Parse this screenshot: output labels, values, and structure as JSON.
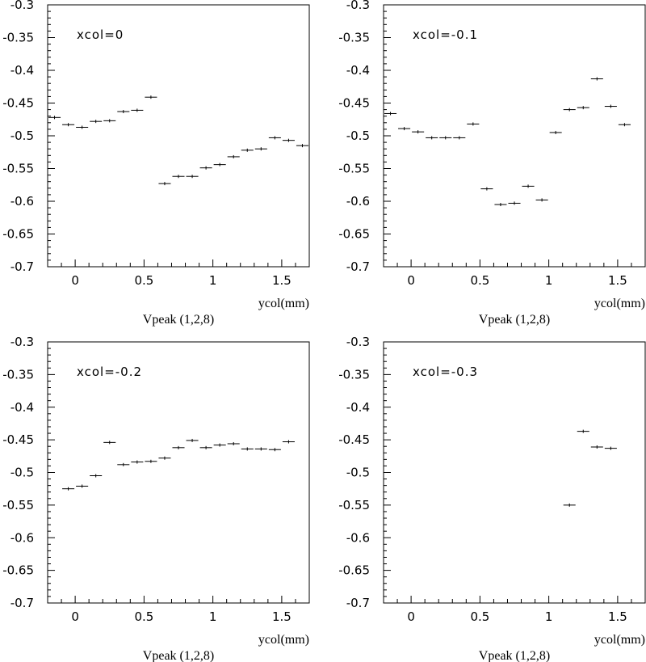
{
  "chart_data": [
    {
      "type": "scatter",
      "label": "xcol=0",
      "xlabel": "ycol(mm)",
      "title_below": "Vpeak (1,2,8)",
      "xlim": [
        -0.2,
        1.7
      ],
      "ylim": [
        -0.7,
        -0.3
      ],
      "grid": false,
      "x_bin_width": 0.1,
      "xticks": [
        "0",
        "0.5",
        "1",
        "1.5"
      ],
      "yticks": [
        "-0.3",
        "-0.35",
        "-0.4",
        "-0.45",
        "-0.5",
        "-0.55",
        "-0.6",
        "-0.65",
        "-0.7"
      ],
      "points": [
        {
          "x": -0.15,
          "y": -0.472
        },
        {
          "x": -0.05,
          "y": -0.483
        },
        {
          "x": 0.05,
          "y": -0.487
        },
        {
          "x": 0.15,
          "y": -0.478
        },
        {
          "x": 0.25,
          "y": -0.477
        },
        {
          "x": 0.35,
          "y": -0.463
        },
        {
          "x": 0.45,
          "y": -0.461
        },
        {
          "x": 0.55,
          "y": -0.441
        },
        {
          "x": 0.65,
          "y": -0.573
        },
        {
          "x": 0.75,
          "y": -0.562
        },
        {
          "x": 0.85,
          "y": -0.562
        },
        {
          "x": 0.95,
          "y": -0.549
        },
        {
          "x": 1.05,
          "y": -0.544
        },
        {
          "x": 1.15,
          "y": -0.532
        },
        {
          "x": 1.25,
          "y": -0.522
        },
        {
          "x": 1.35,
          "y": -0.52
        },
        {
          "x": 1.45,
          "y": -0.503
        },
        {
          "x": 1.55,
          "y": -0.507
        },
        {
          "x": 1.65,
          "y": -0.515
        }
      ]
    },
    {
      "type": "scatter",
      "label": "xcol=-0.1",
      "xlabel": "ycol(mm)",
      "title_below": "Vpeak (1,2,8)",
      "xlim": [
        -0.2,
        1.7
      ],
      "ylim": [
        -0.7,
        -0.3
      ],
      "grid": false,
      "x_bin_width": 0.1,
      "xticks": [
        "0",
        "0.5",
        "1",
        "1.5"
      ],
      "yticks": [
        "-0.3",
        "-0.35",
        "-0.4",
        "-0.45",
        "-0.5",
        "-0.55",
        "-0.6",
        "-0.65",
        "-0.7"
      ],
      "points": [
        {
          "x": -0.15,
          "y": -0.466
        },
        {
          "x": -0.05,
          "y": -0.489
        },
        {
          "x": 0.05,
          "y": -0.494
        },
        {
          "x": 0.15,
          "y": -0.503
        },
        {
          "x": 0.25,
          "y": -0.503
        },
        {
          "x": 0.35,
          "y": -0.503
        },
        {
          "x": 0.45,
          "y": -0.482
        },
        {
          "x": 0.55,
          "y": -0.581
        },
        {
          "x": 0.65,
          "y": -0.605
        },
        {
          "x": 0.75,
          "y": -0.603
        },
        {
          "x": 0.85,
          "y": -0.577
        },
        {
          "x": 0.95,
          "y": -0.598
        },
        {
          "x": 1.05,
          "y": -0.495
        },
        {
          "x": 1.15,
          "y": -0.46
        },
        {
          "x": 1.25,
          "y": -0.457
        },
        {
          "x": 1.35,
          "y": -0.413
        },
        {
          "x": 1.45,
          "y": -0.455
        },
        {
          "x": 1.55,
          "y": -0.483
        }
      ]
    },
    {
      "type": "scatter",
      "label": "xcol=-0.2",
      "xlabel": "ycol(mm)",
      "title_below": "Vpeak (1,2,8)",
      "xlim": [
        -0.2,
        1.7
      ],
      "ylim": [
        -0.7,
        -0.3
      ],
      "grid": false,
      "x_bin_width": 0.1,
      "xticks": [
        "0",
        "0.5",
        "1",
        "1.5"
      ],
      "yticks": [
        "-0.3",
        "-0.35",
        "-0.4",
        "-0.45",
        "-0.5",
        "-0.55",
        "-0.6",
        "-0.65",
        "-0.7"
      ],
      "points": [
        {
          "x": -0.05,
          "y": -0.525
        },
        {
          "x": 0.05,
          "y": -0.521
        },
        {
          "x": 0.15,
          "y": -0.505
        },
        {
          "x": 0.25,
          "y": -0.454
        },
        {
          "x": 0.35,
          "y": -0.488
        },
        {
          "x": 0.45,
          "y": -0.484
        },
        {
          "x": 0.55,
          "y": -0.483
        },
        {
          "x": 0.65,
          "y": -0.478
        },
        {
          "x": 0.75,
          "y": -0.462
        },
        {
          "x": 0.85,
          "y": -0.451
        },
        {
          "x": 0.95,
          "y": -0.462
        },
        {
          "x": 1.05,
          "y": -0.458
        },
        {
          "x": 1.15,
          "y": -0.456
        },
        {
          "x": 1.25,
          "y": -0.464
        },
        {
          "x": 1.35,
          "y": -0.464
        },
        {
          "x": 1.45,
          "y": -0.465
        },
        {
          "x": 1.55,
          "y": -0.453
        }
      ]
    },
    {
      "type": "scatter",
      "label": "xcol=-0.3",
      "xlabel": "ycol(mm)",
      "title_below": "Vpeak (1,2,8)",
      "xlim": [
        -0.2,
        1.7
      ],
      "ylim": [
        -0.7,
        -0.3
      ],
      "grid": false,
      "x_bin_width": 0.1,
      "xticks": [
        "0",
        "0.5",
        "1",
        "1.5"
      ],
      "yticks": [
        "-0.3",
        "-0.35",
        "-0.4",
        "-0.45",
        "-0.5",
        "-0.55",
        "-0.6",
        "-0.65",
        "-0.7"
      ],
      "points": [
        {
          "x": 1.15,
          "y": -0.55
        },
        {
          "x": 1.25,
          "y": -0.437
        },
        {
          "x": 1.35,
          "y": -0.461
        },
        {
          "x": 1.45,
          "y": -0.463
        }
      ]
    }
  ]
}
